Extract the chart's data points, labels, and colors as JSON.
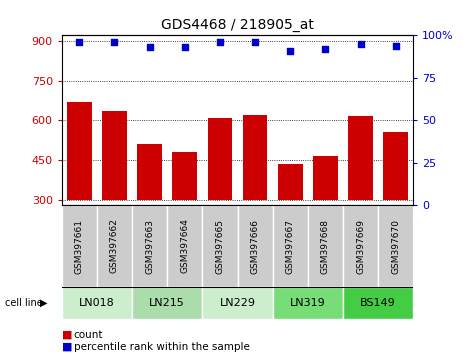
{
  "title": "GDS4468 / 218905_at",
  "samples": [
    "GSM397661",
    "GSM397662",
    "GSM397663",
    "GSM397664",
    "GSM397665",
    "GSM397666",
    "GSM397667",
    "GSM397668",
    "GSM397669",
    "GSM397670"
  ],
  "counts": [
    670,
    635,
    510,
    480,
    610,
    622,
    435,
    465,
    615,
    555
  ],
  "percentile_ranks": [
    96,
    96,
    93,
    93,
    96,
    96,
    91,
    92,
    95,
    94
  ],
  "cell_lines": [
    {
      "name": "LN018",
      "start": 0,
      "end": 1,
      "color": "#cceecc"
    },
    {
      "name": "LN215",
      "start": 2,
      "end": 3,
      "color": "#aaddaa"
    },
    {
      "name": "LN229",
      "start": 4,
      "end": 5,
      "color": "#cceecc"
    },
    {
      "name": "LN319",
      "start": 6,
      "end": 7,
      "color": "#77dd77"
    },
    {
      "name": "BS149",
      "start": 8,
      "end": 9,
      "color": "#44cc44"
    }
  ],
  "ylim_left": [
    280,
    920
  ],
  "yticks_left": [
    300,
    450,
    600,
    750,
    900
  ],
  "ylim_right": [
    0,
    100
  ],
  "yticks_right": [
    0,
    25,
    50,
    75,
    100
  ],
  "bar_color": "#cc0000",
  "dot_color": "#0000cc",
  "bar_width": 0.7,
  "plot_bg_color": "#ffffff",
  "sample_box_color": "#cccccc",
  "xlabel_color": "#cc0000",
  "ylabel_right_color": "#0000cc",
  "legend_count_color": "#cc0000",
  "legend_pct_color": "#0000cc"
}
